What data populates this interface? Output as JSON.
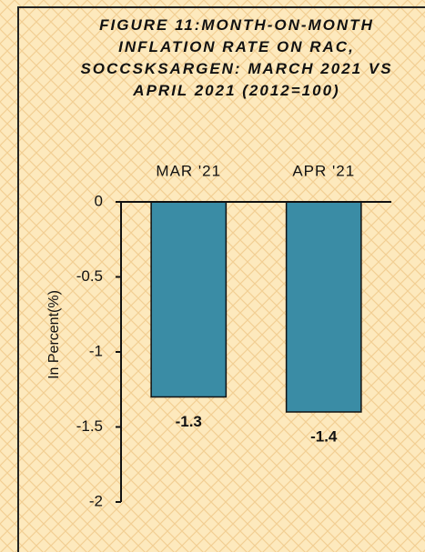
{
  "chart_data": {
    "type": "bar",
    "title": "FIGURE 11:MONTH-ON-MONTH INFLATION RATE ON RAC, SOCCSKSARGEN: MARCH 2021 VS APRIL 2021 (2012=100)",
    "y_label": "In Percent(%)",
    "categories": [
      "MAR '21",
      "APR '21"
    ],
    "values": [
      -1.3,
      -1.4
    ],
    "color": "#3a8ca5",
    "ylim": [
      -2,
      0
    ],
    "yticks": [
      0,
      -0.5,
      -1,
      -1.5,
      -2
    ]
  }
}
